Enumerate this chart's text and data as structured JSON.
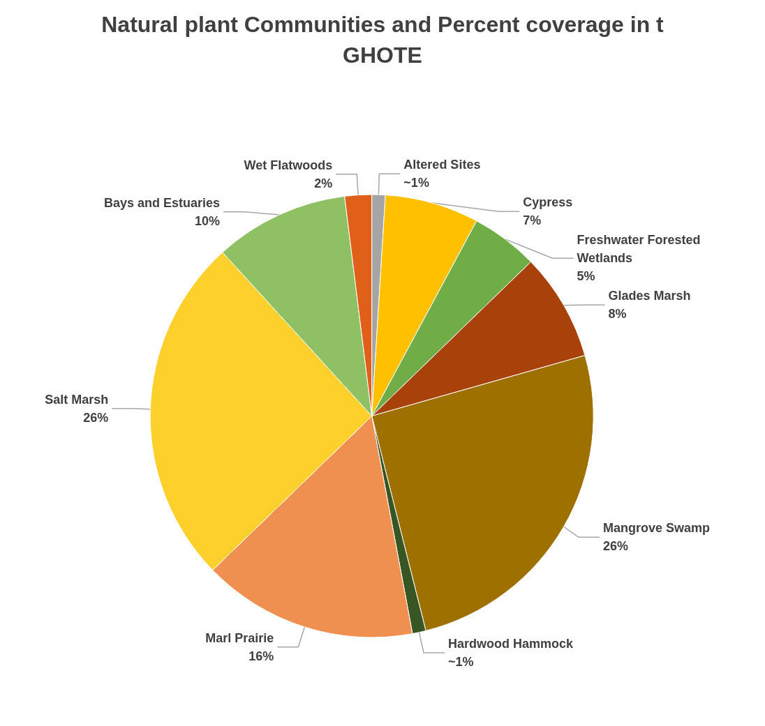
{
  "chart_data": {
    "type": "pie",
    "title": "Natural plant Communities and Percent coverage in t\nGHOTE",
    "categories": [
      "Altered Sites",
      "Cypress",
      "Freshwater Forested\nWetlands",
      "Glades Marsh",
      "Mangrove Swamp",
      "Hardwood Hammock",
      "Marl Prairie",
      "Salt Marsh",
      "Bays and Estuaries",
      "Wet Flatwoods"
    ],
    "values": [
      1,
      7,
      5,
      8,
      26,
      1,
      16,
      26,
      10,
      2
    ],
    "value_labels": [
      "~1%",
      "7%",
      "5%",
      "8%",
      "26%",
      "~1%",
      "16%",
      "26%",
      "10%",
      "2%"
    ],
    "colors": [
      "#a5a5a5",
      "#ffc000",
      "#70ad47",
      "#a9420a",
      "#9e7000",
      "#375623",
      "#f09050",
      "#fdd02c",
      "#8fc064",
      "#e0601a"
    ],
    "legend": false
  }
}
